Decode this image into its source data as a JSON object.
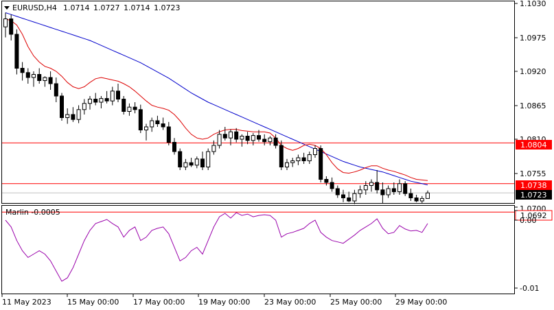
{
  "header": {
    "symbol": "EURUSD,H4",
    "open": "1.0714",
    "high": "1.0727",
    "low": "1.0714",
    "close": "1.0723"
  },
  "price_axis": {
    "ticks": [
      "1.1030",
      "1.0975",
      "1.0920",
      "1.0865",
      "1.0810",
      "1.0755",
      "1.0700"
    ],
    "current_price_label": "1.0723"
  },
  "levels": [
    {
      "label": "1.0804",
      "value": 1.0804,
      "color": "#ff0000"
    },
    {
      "label": "1.0738",
      "value": 1.0738,
      "color": "#ff0000"
    },
    {
      "label": "1.0692",
      "value": 1.0692,
      "color": "#ff0000"
    }
  ],
  "time_axis": [
    "11 May 2023",
    "15 May 00:00",
    "17 May 00:00",
    "19 May 00:00",
    "23 May 00:00",
    "25 May 00:00",
    "29 May 00:00"
  ],
  "oscillator": {
    "title": "Marlin -0.0005",
    "ticks": [
      "0.00",
      "-0.01"
    ],
    "color": "#9900aa"
  },
  "colors": {
    "ma_fast": "#dd0000",
    "ma_slow": "#0000cc",
    "bull": "#ffffff",
    "bear": "#000000"
  },
  "chart_data": [
    {
      "type": "candlestick",
      "title": "EURUSD,H4",
      "ylim": [
        1.0683,
        1.103
      ],
      "ohlc": [
        [
          1.0992,
          1.1015,
          1.0975,
          1.1005
        ],
        [
          1.1005,
          1.1012,
          1.097,
          1.098
        ],
        [
          1.098,
          1.0988,
          1.0915,
          1.0925
        ],
        [
          1.0925,
          1.0935,
          1.0905,
          1.0918
        ],
        [
          1.0918,
          1.0925,
          1.09,
          1.091
        ],
        [
          1.091,
          1.092,
          1.0895,
          1.0915
        ],
        [
          1.0915,
          1.0925,
          1.09,
          1.0905
        ],
        [
          1.0905,
          1.0912,
          1.0895,
          1.091
        ],
        [
          1.091,
          1.092,
          1.089,
          1.09
        ],
        [
          1.09,
          1.091,
          1.087,
          1.088
        ],
        [
          1.088,
          1.0885,
          1.084,
          1.0845
        ],
        [
          1.0845,
          1.086,
          1.0835,
          1.085
        ],
        [
          1.085,
          1.0862,
          1.0838,
          1.0842
        ],
        [
          1.0842,
          1.0865,
          1.0836,
          1.0858
        ],
        [
          1.0858,
          1.0875,
          1.085,
          1.0868
        ],
        [
          1.0868,
          1.088,
          1.0858,
          1.0875
        ],
        [
          1.0875,
          1.0885,
          1.0865,
          1.087
        ],
        [
          1.087,
          1.088,
          1.086,
          1.0876
        ],
        [
          1.0876,
          1.0888,
          1.0868,
          1.0872
        ],
        [
          1.0872,
          1.0895,
          1.0865,
          1.0888
        ],
        [
          1.0888,
          1.09,
          1.087,
          1.0875
        ],
        [
          1.0875,
          1.088,
          1.085,
          1.0855
        ],
        [
          1.0855,
          1.0868,
          1.0848,
          1.0862
        ],
        [
          1.0862,
          1.087,
          1.0852,
          1.0858
        ],
        [
          1.0858,
          1.0866,
          1.082,
          1.0825
        ],
        [
          1.0825,
          1.0835,
          1.0808,
          1.083
        ],
        [
          1.083,
          1.0845,
          1.0822,
          1.084
        ],
        [
          1.084,
          1.0848,
          1.083,
          1.0835
        ],
        [
          1.0835,
          1.0845,
          1.0825,
          1.083
        ],
        [
          1.083,
          1.0838,
          1.08,
          1.0805
        ],
        [
          1.0805,
          1.0812,
          1.0785,
          1.079
        ],
        [
          1.079,
          1.0795,
          1.076,
          1.0765
        ],
        [
          1.0765,
          1.0778,
          1.076,
          1.0772
        ],
        [
          1.0772,
          1.078,
          1.0765,
          1.0768
        ],
        [
          1.0768,
          1.0782,
          1.0763,
          1.0778
        ],
        [
          1.0778,
          1.079,
          1.076,
          1.0765
        ],
        [
          1.0765,
          1.0795,
          1.076,
          1.079
        ],
        [
          1.079,
          1.0808,
          1.0785,
          1.08
        ],
        [
          1.08,
          1.0825,
          1.0795,
          1.0818
        ],
        [
          1.0818,
          1.083,
          1.0808,
          1.0812
        ],
        [
          1.0812,
          1.0826,
          1.08,
          1.0822
        ],
        [
          1.0822,
          1.0828,
          1.0805,
          1.081
        ],
        [
          1.081,
          1.0818,
          1.0798,
          1.0815
        ],
        [
          1.0815,
          1.0822,
          1.0802,
          1.0808
        ],
        [
          1.0808,
          1.082,
          1.08,
          1.0816
        ],
        [
          1.0816,
          1.0825,
          1.0806,
          1.081
        ],
        [
          1.081,
          1.0818,
          1.08,
          1.0806
        ],
        [
          1.0806,
          1.0815,
          1.08,
          1.0812
        ],
        [
          1.0812,
          1.0818,
          1.0795,
          1.08
        ],
        [
          1.08,
          1.0808,
          1.076,
          1.0765
        ],
        [
          1.0765,
          1.0778,
          1.076,
          1.0772
        ],
        [
          1.0772,
          1.078,
          1.0765,
          1.0775
        ],
        [
          1.0775,
          1.0785,
          1.0768,
          1.078
        ],
        [
          1.078,
          1.0788,
          1.077,
          1.0775
        ],
        [
          1.0775,
          1.079,
          1.077,
          1.0785
        ],
        [
          1.0785,
          1.08,
          1.078,
          1.0795
        ],
        [
          1.0795,
          1.08,
          1.074,
          1.0745
        ],
        [
          1.0745,
          1.075,
          1.0735,
          1.074
        ],
        [
          1.074,
          1.0748,
          1.0725,
          1.073
        ],
        [
          1.073,
          1.0735,
          1.0715,
          1.072
        ],
        [
          1.072,
          1.0728,
          1.0708,
          1.0715
        ],
        [
          1.0715,
          1.0725,
          1.0708,
          1.071
        ],
        [
          1.071,
          1.0728,
          1.0705,
          1.0722
        ],
        [
          1.0722,
          1.0735,
          1.0715,
          1.0728
        ],
        [
          1.0728,
          1.0742,
          1.072,
          1.0735
        ],
        [
          1.0735,
          1.0745,
          1.0725,
          1.074
        ],
        [
          1.074,
          1.076,
          1.0722,
          1.0728
        ],
        [
          1.0728,
          1.074,
          1.0706,
          1.072
        ],
        [
          1.072,
          1.0735,
          1.0715,
          1.073
        ],
        [
          1.073,
          1.074,
          1.072,
          1.0725
        ],
        [
          1.0725,
          1.0745,
          1.072,
          1.0738
        ],
        [
          1.0738,
          1.0742,
          1.0718,
          1.0722
        ],
        [
          1.0722,
          1.073,
          1.071,
          1.0715
        ],
        [
          1.0715,
          1.072,
          1.0708,
          1.071
        ],
        [
          1.071,
          1.0718,
          1.0706,
          1.0714
        ],
        [
          1.0714,
          1.0727,
          1.0714,
          1.0723
        ]
      ],
      "ma_fast": [
        1.1005,
        1.1002,
        1.0995,
        1.098,
        1.096,
        1.0945,
        1.0935,
        1.0928,
        1.0925,
        1.092,
        1.0912,
        1.0902,
        1.0895,
        1.0892,
        1.0895,
        1.0902,
        1.0908,
        1.091,
        1.0908,
        1.0906,
        1.0904,
        1.09,
        1.0895,
        1.0888,
        1.088,
        1.0872,
        1.0865,
        1.0862,
        1.086,
        1.0857,
        1.085,
        1.084,
        1.0828,
        1.0818,
        1.0812,
        1.081,
        1.0812,
        1.0818,
        1.0822,
        1.0825,
        1.0826,
        1.0826,
        1.0824,
        1.0823,
        1.0822,
        1.0822,
        1.0822,
        1.082,
        1.0812,
        1.08,
        1.0795,
        1.0792,
        1.0795,
        1.08,
        1.0802,
        1.08,
        1.0795,
        1.0785,
        1.0772,
        1.0762,
        1.0756,
        1.0755,
        1.0757,
        1.076,
        1.0764,
        1.0767,
        1.0767,
        1.0763,
        1.076,
        1.0758,
        1.0755,
        1.0752,
        1.0748,
        1.0745,
        1.0744,
        1.0743
      ],
      "ma_slow": [
        1.1015,
        1.1012,
        1.1009,
        1.1006,
        1.1003,
        1.1,
        1.0997,
        1.0994,
        1.0991,
        1.0988,
        1.0985,
        1.0982,
        1.0979,
        1.0976,
        1.0973,
        1.097,
        1.0966,
        1.0962,
        1.0958,
        1.0954,
        1.095,
        1.0946,
        1.0942,
        1.0938,
        1.0934,
        1.0929,
        1.0924,
        1.0919,
        1.0914,
        1.0909,
        1.0903,
        1.0897,
        1.0891,
        1.0885,
        1.088,
        1.0875,
        1.087,
        1.0866,
        1.0862,
        1.0858,
        1.0854,
        1.085,
        1.0846,
        1.0842,
        1.0838,
        1.0834,
        1.083,
        1.0826,
        1.0822,
        1.0818,
        1.0814,
        1.081,
        1.0806,
        1.0802,
        1.0798,
        1.0794,
        1.079,
        1.0786,
        1.0782,
        1.0778,
        1.0774,
        1.0771,
        1.0768,
        1.0765,
        1.0763,
        1.0761,
        1.0759,
        1.0757,
        1.0754,
        1.0751,
        1.0748,
        1.0745,
        1.0742,
        1.074,
        1.0738,
        1.0736
      ]
    },
    {
      "type": "line",
      "title": "Marlin -0.0005",
      "ylim": [
        -0.011,
        0.0015
      ],
      "series": [
        {
          "values": [
            0.0,
            -0.001,
            -0.003,
            -0.0045,
            -0.0055,
            -0.005,
            -0.0045,
            -0.005,
            -0.006,
            -0.0075,
            -0.009,
            -0.0085,
            -0.007,
            -0.005,
            -0.003,
            -0.0015,
            -0.0005,
            -0.0002,
            0.0001,
            -0.0005,
            -0.001,
            -0.0025,
            -0.0015,
            -0.001,
            -0.003,
            -0.0025,
            -0.0015,
            -0.0012,
            -0.001,
            -0.002,
            -0.004,
            -0.006,
            -0.0055,
            -0.0045,
            -0.004,
            -0.005,
            -0.003,
            -0.001,
            0.0005,
            0.001,
            0.0003,
            0.0011,
            0.0007,
            0.0009,
            0.0005,
            0.0007,
            0.0008,
            0.0007,
            0.0,
            -0.0025,
            -0.002,
            -0.0018,
            -0.0015,
            -0.0012,
            -0.0005,
            0.0,
            -0.0018,
            -0.0025,
            -0.003,
            -0.0032,
            -0.0034,
            -0.0028,
            -0.0022,
            -0.0015,
            -0.001,
            -0.0005,
            0.0002,
            -0.0012,
            -0.002,
            -0.0018,
            -0.0008,
            -0.0013,
            -0.0016,
            -0.0015,
            -0.0018,
            -0.0005
          ]
        }
      ]
    }
  ]
}
